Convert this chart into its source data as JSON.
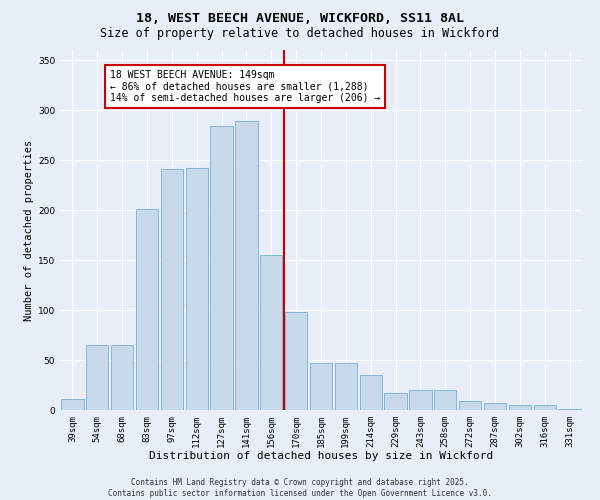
{
  "title": "18, WEST BEECH AVENUE, WICKFORD, SS11 8AL",
  "subtitle": "Size of property relative to detached houses in Wickford",
  "xlabel": "Distribution of detached houses by size in Wickford",
  "ylabel": "Number of detached properties",
  "categories": [
    "39sqm",
    "54sqm",
    "68sqm",
    "83sqm",
    "97sqm",
    "112sqm",
    "127sqm",
    "141sqm",
    "156sqm",
    "170sqm",
    "185sqm",
    "199sqm",
    "214sqm",
    "229sqm",
    "243sqm",
    "258sqm",
    "272sqm",
    "287sqm",
    "302sqm",
    "316sqm",
    "331sqm"
  ],
  "values": [
    11,
    65,
    65,
    201,
    241,
    242,
    284,
    289,
    155,
    98,
    47,
    47,
    35,
    17,
    20,
    20,
    9,
    7,
    5,
    5,
    1
  ],
  "bar_color": "#c9d9ec",
  "bar_edge_color": "#7aafd4",
  "property_line_x": 8.5,
  "annotation_text": "18 WEST BEECH AVENUE: 149sqm\n← 86% of detached houses are smaller (1,288)\n14% of semi-detached houses are larger (206) →",
  "annotation_box_color": "#ffffff",
  "annotation_box_edge": "#cc0000",
  "vline_color": "#cc0000",
  "ylim": [
    0,
    360
  ],
  "yticks": [
    0,
    50,
    100,
    150,
    200,
    250,
    300,
    350
  ],
  "background_color": "#e8eef8",
  "grid_color": "#ffffff",
  "footer": "Contains HM Land Registry data © Crown copyright and database right 2025.\nContains public sector information licensed under the Open Government Licence v3.0.",
  "title_fontsize": 9.5,
  "subtitle_fontsize": 8.5,
  "xlabel_fontsize": 8,
  "ylabel_fontsize": 7.5,
  "tick_fontsize": 6.5,
  "annotation_fontsize": 7,
  "footer_fontsize": 5.5
}
